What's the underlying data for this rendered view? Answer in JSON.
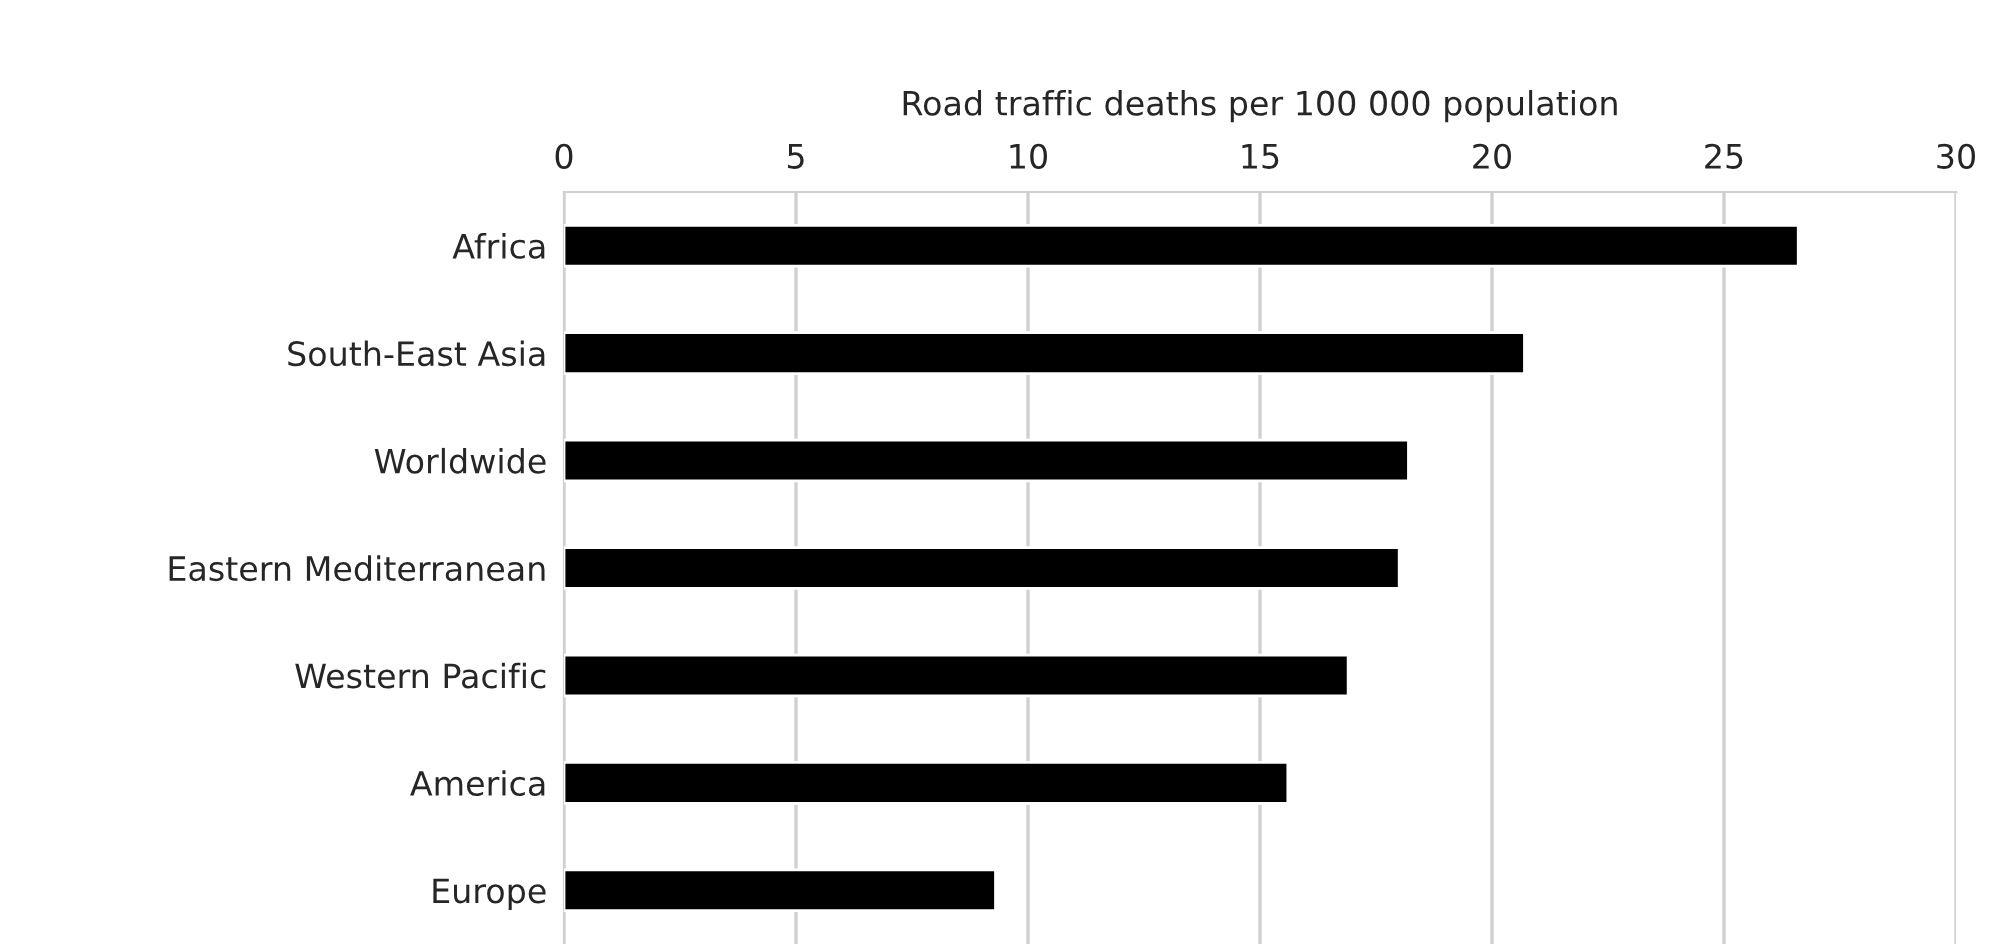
{
  "chart_data": {
    "type": "bar",
    "orientation": "horizontal",
    "xlabel": "Road traffic deaths per 100 000 population",
    "categories": [
      "Africa",
      "South-East Asia",
      "Worldwide",
      "Eastern Mediterranean",
      "Western Pacific",
      "America",
      "Europe"
    ],
    "values": [
      26.6,
      20.7,
      18.2,
      18.0,
      16.9,
      15.6,
      9.3
    ],
    "color": "#000000",
    "xlim": [
      0,
      30
    ],
    "xticks": [
      0,
      5,
      10,
      15,
      20,
      25,
      30
    ],
    "grid": "x"
  }
}
